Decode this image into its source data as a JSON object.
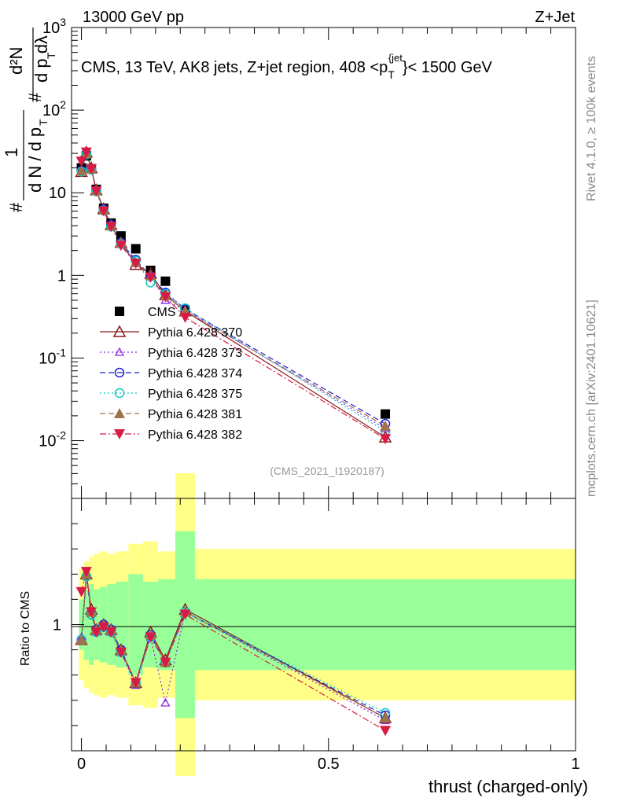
{
  "header": {
    "left": "13000 GeV pp",
    "right": "Z+Jet"
  },
  "side_texts": {
    "rivet": "Rivet 4.1.0, ≥ 100k events",
    "mcplots": "mcplots.cern.ch [arXiv:2401.10621]"
  },
  "chart_data": [
    {
      "type": "line",
      "panel": "main",
      "title": "CMS, 13 TeV, AK8 jets, Z+jet region, 408 <p_T^{jet}< 1500 GeV",
      "ylabel": "1/dN/dpT # d²N/dpT dλ",
      "yscale": "log",
      "ylim": [
        0.002,
        1000
      ],
      "xlim": [
        -0.02,
        1.0
      ],
      "yticks": [
        "10^{-2}",
        "10^{-1}",
        "1",
        "10",
        "10^{2}",
        "10^{3}"
      ],
      "watermark": "(CMS_2021_I1920187)",
      "x": [
        0.0,
        0.01,
        0.02,
        0.03,
        0.045,
        0.06,
        0.08,
        0.11,
        0.14,
        0.17,
        0.21,
        0.615
      ],
      "series": [
        {
          "name": "CMS",
          "color": "#000000",
          "marker": "square-filled",
          "line": "none",
          "values": [
            20,
            28,
            19.5,
            11,
            6.5,
            4.3,
            3.0,
            2.1,
            1.15,
            0.85,
            0.38,
            0.021
          ]
        },
        {
          "name": "Pythia 6.428 370",
          "color": "#8b1a1a",
          "marker": "triangle-open",
          "line": "solid",
          "values": [
            18,
            31,
            20,
            10.8,
            6.4,
            4.1,
            2.5,
            1.35,
            1.05,
            0.58,
            0.37,
            0.011
          ]
        },
        {
          "name": "Pythia 6.428 373",
          "color": "#8a2be2",
          "marker": "triangle-open-small",
          "line": "dotted",
          "values": [
            19,
            30,
            20,
            10.5,
            6.1,
            4.0,
            2.4,
            1.4,
            1.0,
            0.5,
            0.38,
            0.014
          ]
        },
        {
          "name": "Pythia 6.428 374",
          "color": "#1c1cd6",
          "marker": "circle-open",
          "line": "dashed",
          "values": [
            18.5,
            30,
            19.5,
            10.6,
            6.3,
            4.1,
            2.5,
            1.55,
            0.98,
            0.62,
            0.39,
            0.016
          ]
        },
        {
          "name": "Pythia 6.428 375",
          "color": "#11c9c0",
          "marker": "circle-open",
          "line": "dotted",
          "values": [
            18,
            29,
            19,
            10.4,
            6.1,
            3.9,
            2.4,
            1.5,
            0.82,
            0.6,
            0.4,
            0.013
          ]
        },
        {
          "name": "Pythia 6.428 381",
          "color": "#a0724a",
          "marker": "triangle-filled",
          "line": "dashed",
          "values": [
            18.5,
            30,
            19.5,
            10.7,
            6.2,
            4.0,
            2.5,
            1.45,
            1.0,
            0.57,
            0.37,
            0.015
          ]
        },
        {
          "name": "Pythia 6.428 382",
          "color": "#d81b45",
          "marker": "triangle-down-filled",
          "line": "dashdot",
          "values": [
            24,
            31,
            19.5,
            10.5,
            6.0,
            3.9,
            2.3,
            1.4,
            0.95,
            0.55,
            0.31,
            0.0105
          ]
        }
      ]
    },
    {
      "type": "line",
      "panel": "ratio",
      "ylabel": "Ratio to CMS",
      "xlabel": "thrust (charged-only)",
      "xlim": [
        -0.02,
        1.0
      ],
      "ylim": [
        0.5,
        1.5
      ],
      "xticks": [
        "0",
        "0.5",
        "1"
      ],
      "yticks": [
        "1"
      ],
      "bands": {
        "edges": [
          -0.005,
          0.005,
          0.015,
          0.025,
          0.037,
          0.052,
          0.07,
          0.095,
          0.125,
          0.155,
          0.19,
          0.23,
          1.0
        ],
        "inner": [
          0.9,
          0.86,
          0.84,
          0.86,
          0.85,
          0.84,
          0.83,
          0.8,
          0.83,
          0.82,
          0.63,
          0.82
        ],
        "inner_hi": [
          1.1,
          1.14,
          1.16,
          1.14,
          1.15,
          1.16,
          1.17,
          1.2,
          1.17,
          1.18,
          1.37,
          1.18
        ],
        "outer": [
          0.78,
          0.75,
          0.73,
          0.72,
          0.71,
          0.72,
          0.71,
          0.68,
          0.67,
          0.71,
          0.4,
          0.7
        ],
        "outer_hi": [
          1.22,
          1.25,
          1.27,
          1.28,
          1.29,
          1.28,
          1.29,
          1.32,
          1.33,
          1.29,
          1.6,
          1.3
        ]
      },
      "x": [
        0.0,
        0.01,
        0.02,
        0.03,
        0.045,
        0.06,
        0.08,
        0.11,
        0.14,
        0.17,
        0.21,
        0.615
      ],
      "series": [
        {
          "name": "Pythia 6.428 370",
          "color": "#8b1a1a",
          "line": "solid",
          "values": [
            0.94,
            1.2,
            1.06,
            0.98,
            1.0,
            0.98,
            0.9,
            0.77,
            0.97,
            0.86,
            1.06,
            0.63
          ]
        },
        {
          "name": "Pythia 6.428 373",
          "color": "#8a2be2",
          "line": "dotted",
          "values": [
            0.95,
            1.21,
            1.05,
            0.97,
            0.99,
            0.97,
            0.89,
            0.76,
            0.95,
            0.69,
            1.05,
            0.62
          ]
        },
        {
          "name": "Pythia 6.428 374",
          "color": "#1c1cd6",
          "line": "dashed",
          "values": [
            0.94,
            1.19,
            1.04,
            0.98,
            1.0,
            0.98,
            0.9,
            0.77,
            0.96,
            0.85,
            1.05,
            0.64
          ]
        },
        {
          "name": "Pythia 6.428 375",
          "color": "#11c9c0",
          "line": "dotted",
          "values": [
            0.94,
            1.19,
            1.04,
            0.97,
            0.99,
            0.97,
            0.89,
            0.77,
            0.95,
            0.85,
            1.05,
            0.65
          ]
        },
        {
          "name": "Pythia 6.428 381",
          "color": "#a0724a",
          "line": "dashed",
          "values": [
            0.94,
            1.2,
            1.05,
            0.98,
            1.0,
            0.98,
            0.9,
            0.77,
            0.96,
            0.85,
            1.05,
            0.63
          ]
        },
        {
          "name": "Pythia 6.428 382",
          "color": "#d81b45",
          "line": "dashdot",
          "values": [
            1.13,
            1.21,
            1.05,
            0.97,
            0.99,
            0.97,
            0.89,
            0.77,
            0.95,
            0.85,
            1.04,
            0.58
          ]
        }
      ]
    }
  ]
}
